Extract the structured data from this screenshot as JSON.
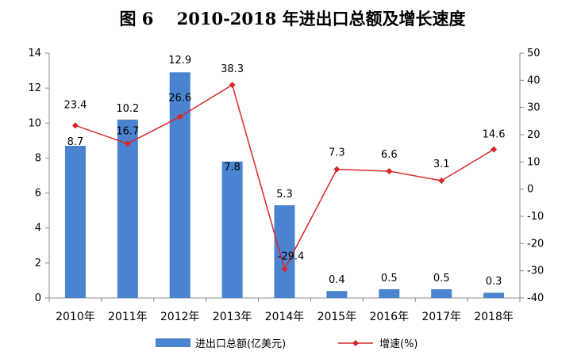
{
  "title": "图 6    2010-2018 年进出口总额及增长速度",
  "colors": {
    "bar": "#4A84D1",
    "line": "#D9262B",
    "axis": "#8C8C8C"
  },
  "chart_data": {
    "type": "bar+line",
    "categories": [
      "2010年",
      "2011年",
      "2012年",
      "2013年",
      "2014年",
      "2015年",
      "2016年",
      "2017年",
      "2018年"
    ],
    "series": [
      {
        "name": "进出口总额(亿美元)",
        "type": "bar",
        "axis": "left",
        "values": [
          8.7,
          10.2,
          12.9,
          7.8,
          5.3,
          0.4,
          0.5,
          0.5,
          0.3
        ],
        "labels": [
          "8.7",
          "10.2",
          "12.9",
          "7.8",
          "5.3",
          "0.4",
          "0.5",
          "0.5",
          "0.3"
        ]
      },
      {
        "name": "增速(%)",
        "type": "line",
        "axis": "right",
        "values": [
          23.4,
          16.7,
          26.6,
          38.3,
          -29.4,
          7.3,
          6.6,
          3.1,
          14.6
        ],
        "labels": [
          "23.4",
          "16.7",
          "26.6",
          "38.3",
          "-29.4",
          "7.3",
          "6.6",
          "3.1",
          "14.6"
        ]
      }
    ],
    "y_left": {
      "min": 0,
      "max": 14,
      "step": 2,
      "ticks": [
        "0",
        "2",
        "4",
        "6",
        "8",
        "10",
        "12",
        "14"
      ]
    },
    "y_right": {
      "min": -40,
      "max": 50,
      "step": 10,
      "ticks": [
        "-40",
        "-30",
        "-20",
        "-10",
        "0",
        "10",
        "20",
        "30",
        "40",
        "50"
      ]
    },
    "legend": {
      "position": "bottom"
    },
    "grid": false
  }
}
